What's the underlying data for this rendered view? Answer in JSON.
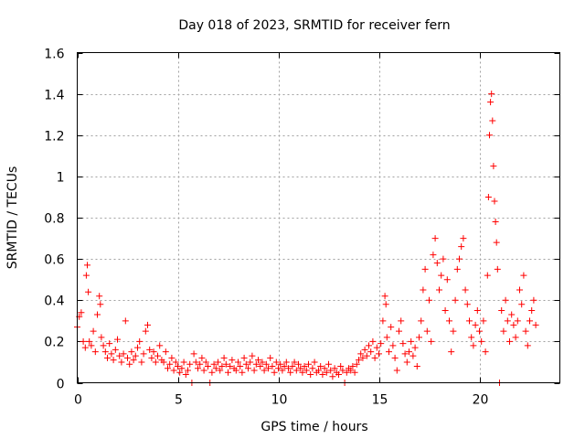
{
  "chart_data": {
    "type": "scatter",
    "title": "Day 018 of 2023, SRMTID for receiver fern",
    "xlabel": "GPS time / hours",
    "ylabel": "SRMTID / TECUs",
    "xlim": [
      0,
      24
    ],
    "ylim": [
      0,
      1.6
    ],
    "xticks": [
      0,
      5,
      10,
      15,
      20
    ],
    "xtick_labels": [
      "0",
      "5",
      "10",
      "15",
      "20"
    ],
    "yticks": [
      0,
      0.2,
      0.4,
      0.6,
      0.8,
      1.0,
      1.2,
      1.4,
      1.6
    ],
    "ytick_labels": [
      "0",
      "0.2",
      "0.4",
      "0.6",
      "0.8",
      "1",
      "1.2",
      "1.4",
      "1.6"
    ],
    "grid": true,
    "marker": "+",
    "color": "#ff0000",
    "series": [
      {
        "name": "SRMTID",
        "points": [
          [
            0.0,
            0.27
          ],
          [
            0.1,
            0.32
          ],
          [
            0.2,
            0.34
          ],
          [
            0.3,
            0.2
          ],
          [
            0.4,
            0.17
          ],
          [
            0.45,
            0.52
          ],
          [
            0.5,
            0.57
          ],
          [
            0.55,
            0.44
          ],
          [
            0.6,
            0.2
          ],
          [
            0.7,
            0.18
          ],
          [
            0.8,
            0.25
          ],
          [
            0.9,
            0.15
          ],
          [
            1.0,
            0.33
          ],
          [
            1.1,
            0.42
          ],
          [
            1.15,
            0.38
          ],
          [
            1.2,
            0.22
          ],
          [
            1.3,
            0.18
          ],
          [
            1.4,
            0.15
          ],
          [
            1.5,
            0.12
          ],
          [
            1.6,
            0.19
          ],
          [
            1.7,
            0.14
          ],
          [
            1.8,
            0.11
          ],
          [
            1.9,
            0.16
          ],
          [
            2.0,
            0.21
          ],
          [
            2.1,
            0.13
          ],
          [
            2.2,
            0.1
          ],
          [
            2.3,
            0.14
          ],
          [
            2.4,
            0.3
          ],
          [
            2.5,
            0.12
          ],
          [
            2.6,
            0.09
          ],
          [
            2.7,
            0.15
          ],
          [
            2.8,
            0.11
          ],
          [
            2.9,
            0.13
          ],
          [
            3.0,
            0.17
          ],
          [
            3.1,
            0.2
          ],
          [
            3.2,
            0.1
          ],
          [
            3.3,
            0.14
          ],
          [
            3.4,
            0.25
          ],
          [
            3.5,
            0.28
          ],
          [
            3.6,
            0.16
          ],
          [
            3.7,
            0.12
          ],
          [
            3.8,
            0.15
          ],
          [
            3.9,
            0.1
          ],
          [
            4.0,
            0.13
          ],
          [
            4.1,
            0.18
          ],
          [
            4.2,
            0.11
          ],
          [
            4.3,
            0.1
          ],
          [
            4.4,
            0.15
          ],
          [
            4.5,
            0.07
          ],
          [
            4.6,
            0.09
          ],
          [
            4.7,
            0.12
          ],
          [
            4.8,
            0.06
          ],
          [
            4.9,
            0.1
          ],
          [
            5.0,
            0.08
          ],
          [
            5.1,
            0.05
          ],
          [
            5.2,
            0.07
          ],
          [
            5.3,
            0.1
          ],
          [
            5.4,
            0.04
          ],
          [
            5.5,
            0.06
          ],
          [
            5.6,
            0.09
          ],
          [
            5.7,
            0.0
          ],
          [
            5.8,
            0.14
          ],
          [
            5.9,
            0.1
          ],
          [
            6.0,
            0.07
          ],
          [
            6.1,
            0.09
          ],
          [
            6.2,
            0.12
          ],
          [
            6.3,
            0.06
          ],
          [
            6.4,
            0.1
          ],
          [
            6.5,
            0.08
          ],
          [
            6.6,
            0.0
          ],
          [
            6.7,
            0.05
          ],
          [
            6.8,
            0.09
          ],
          [
            6.9,
            0.07
          ],
          [
            7.0,
            0.1
          ],
          [
            7.1,
            0.06
          ],
          [
            7.2,
            0.08
          ],
          [
            7.3,
            0.12
          ],
          [
            7.4,
            0.09
          ],
          [
            7.5,
            0.05
          ],
          [
            7.6,
            0.08
          ],
          [
            7.7,
            0.11
          ],
          [
            7.8,
            0.07
          ],
          [
            7.9,
            0.06
          ],
          [
            8.0,
            0.1
          ],
          [
            8.1,
            0.08
          ],
          [
            8.2,
            0.05
          ],
          [
            8.3,
            0.12
          ],
          [
            8.4,
            0.09
          ],
          [
            8.5,
            0.07
          ],
          [
            8.6,
            0.1
          ],
          [
            8.7,
            0.13
          ],
          [
            8.8,
            0.06
          ],
          [
            8.9,
            0.09
          ],
          [
            9.0,
            0.11
          ],
          [
            9.1,
            0.08
          ],
          [
            9.2,
            0.1
          ],
          [
            9.3,
            0.06
          ],
          [
            9.4,
            0.09
          ],
          [
            9.5,
            0.07
          ],
          [
            9.6,
            0.12
          ],
          [
            9.7,
            0.08
          ],
          [
            9.8,
            0.05
          ],
          [
            9.9,
            0.1
          ],
          [
            10.0,
            0.07
          ],
          [
            10.1,
            0.09
          ],
          [
            10.2,
            0.06
          ],
          [
            10.3,
            0.08
          ],
          [
            10.4,
            0.1
          ],
          [
            10.5,
            0.07
          ],
          [
            10.6,
            0.05
          ],
          [
            10.7,
            0.08
          ],
          [
            10.8,
            0.1
          ],
          [
            10.9,
            0.06
          ],
          [
            11.0,
            0.09
          ],
          [
            11.1,
            0.07
          ],
          [
            11.2,
            0.05
          ],
          [
            11.3,
            0.08
          ],
          [
            11.4,
            0.06
          ],
          [
            11.5,
            0.09
          ],
          [
            11.6,
            0.04
          ],
          [
            11.7,
            0.07
          ],
          [
            11.8,
            0.1
          ],
          [
            11.9,
            0.05
          ],
          [
            12.0,
            0.06
          ],
          [
            12.1,
            0.08
          ],
          [
            12.2,
            0.04
          ],
          [
            12.3,
            0.07
          ],
          [
            12.4,
            0.05
          ],
          [
            12.5,
            0.09
          ],
          [
            12.6,
            0.06
          ],
          [
            12.7,
            0.03
          ],
          [
            12.8,
            0.07
          ],
          [
            12.9,
            0.05
          ],
          [
            13.0,
            0.04
          ],
          [
            13.1,
            0.08
          ],
          [
            13.2,
            0.06
          ],
          [
            13.3,
            0.0
          ],
          [
            13.4,
            0.05
          ],
          [
            13.5,
            0.07
          ],
          [
            13.6,
            0.06
          ],
          [
            13.7,
            0.08
          ],
          [
            13.8,
            0.05
          ],
          [
            13.9,
            0.09
          ],
          [
            14.0,
            0.11
          ],
          [
            14.1,
            0.14
          ],
          [
            14.2,
            0.12
          ],
          [
            14.3,
            0.16
          ],
          [
            14.4,
            0.13
          ],
          [
            14.5,
            0.18
          ],
          [
            14.6,
            0.15
          ],
          [
            14.7,
            0.2
          ],
          [
            14.8,
            0.12
          ],
          [
            14.9,
            0.17
          ],
          [
            15.0,
            0.14
          ],
          [
            15.1,
            0.19
          ],
          [
            15.2,
            0.3
          ],
          [
            15.3,
            0.42
          ],
          [
            15.35,
            0.38
          ],
          [
            15.4,
            0.22
          ],
          [
            15.5,
            0.15
          ],
          [
            15.6,
            0.27
          ],
          [
            15.7,
            0.18
          ],
          [
            15.8,
            0.12
          ],
          [
            15.9,
            0.06
          ],
          [
            16.0,
            0.25
          ],
          [
            16.1,
            0.3
          ],
          [
            16.2,
            0.19
          ],
          [
            16.3,
            0.14
          ],
          [
            16.4,
            0.1
          ],
          [
            16.5,
            0.15
          ],
          [
            16.6,
            0.2
          ],
          [
            16.7,
            0.13
          ],
          [
            16.8,
            0.17
          ],
          [
            16.9,
            0.08
          ],
          [
            17.0,
            0.22
          ],
          [
            17.1,
            0.3
          ],
          [
            17.2,
            0.45
          ],
          [
            17.3,
            0.55
          ],
          [
            17.4,
            0.25
          ],
          [
            17.5,
            0.4
          ],
          [
            17.6,
            0.2
          ],
          [
            17.7,
            0.62
          ],
          [
            17.8,
            0.7
          ],
          [
            17.9,
            0.58
          ],
          [
            18.0,
            0.45
          ],
          [
            18.1,
            0.52
          ],
          [
            18.2,
            0.6
          ],
          [
            18.3,
            0.35
          ],
          [
            18.4,
            0.5
          ],
          [
            18.5,
            0.3
          ],
          [
            18.6,
            0.15
          ],
          [
            18.7,
            0.25
          ],
          [
            18.8,
            0.4
          ],
          [
            18.9,
            0.55
          ],
          [
            19.0,
            0.6
          ],
          [
            19.1,
            0.66
          ],
          [
            19.2,
            0.7
          ],
          [
            19.3,
            0.45
          ],
          [
            19.4,
            0.38
          ],
          [
            19.5,
            0.3
          ],
          [
            19.6,
            0.22
          ],
          [
            19.7,
            0.18
          ],
          [
            19.8,
            0.28
          ],
          [
            19.9,
            0.35
          ],
          [
            20.0,
            0.25
          ],
          [
            20.1,
            0.2
          ],
          [
            20.2,
            0.3
          ],
          [
            20.3,
            0.15
          ],
          [
            20.4,
            0.52
          ],
          [
            20.45,
            0.9
          ],
          [
            20.5,
            1.2
          ],
          [
            20.55,
            1.36
          ],
          [
            20.6,
            1.4
          ],
          [
            20.65,
            1.27
          ],
          [
            20.7,
            1.05
          ],
          [
            20.75,
            0.88
          ],
          [
            20.8,
            0.78
          ],
          [
            20.85,
            0.68
          ],
          [
            20.9,
            0.55
          ],
          [
            21.0,
            0.0
          ],
          [
            21.1,
            0.35
          ],
          [
            21.2,
            0.25
          ],
          [
            21.3,
            0.4
          ],
          [
            21.4,
            0.3
          ],
          [
            21.5,
            0.2
          ],
          [
            21.6,
            0.33
          ],
          [
            21.7,
            0.28
          ],
          [
            21.8,
            0.22
          ],
          [
            21.9,
            0.3
          ],
          [
            22.0,
            0.45
          ],
          [
            22.1,
            0.38
          ],
          [
            22.2,
            0.52
          ],
          [
            22.3,
            0.25
          ],
          [
            22.4,
            0.18
          ],
          [
            22.5,
            0.3
          ],
          [
            22.6,
            0.35
          ],
          [
            22.7,
            0.4
          ],
          [
            22.8,
            0.28
          ]
        ]
      }
    ]
  }
}
